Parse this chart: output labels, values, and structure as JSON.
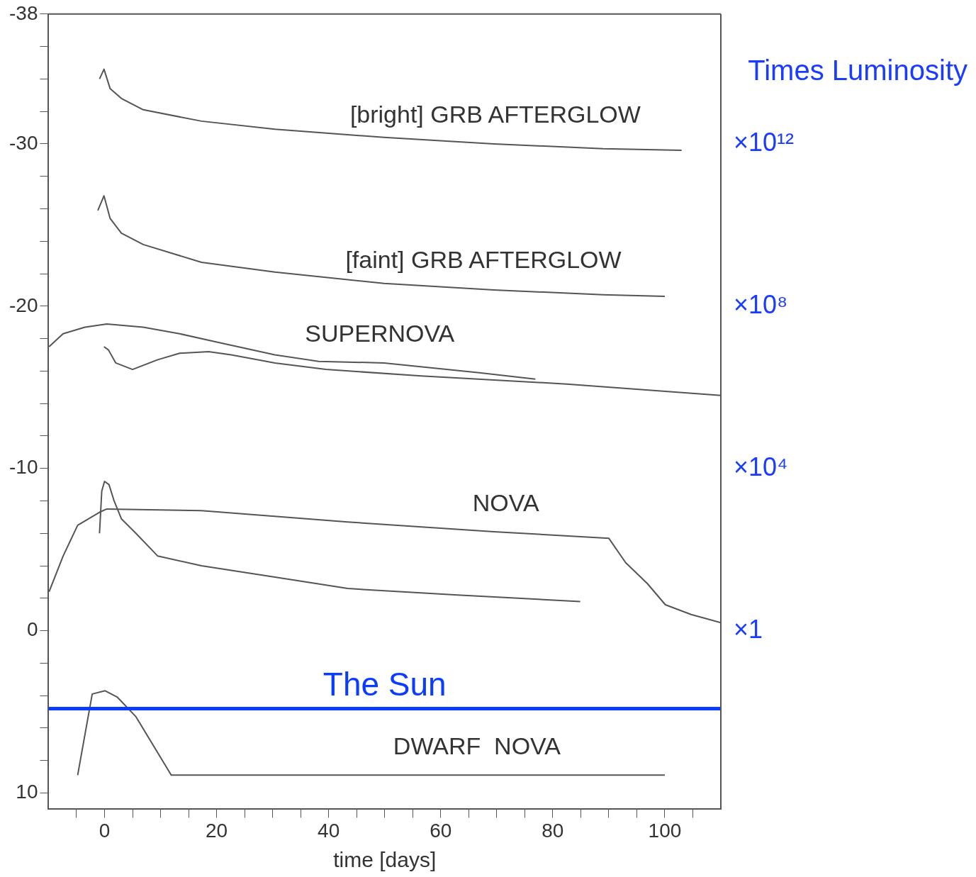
{
  "chart_data": {
    "type": "line",
    "xlabel": "time [days]",
    "y2label": "Times Luminosity",
    "xlim": [
      -10,
      110
    ],
    "ylim": [
      11,
      -38
    ],
    "xticks": [
      {
        "value": -5,
        "label": null
      },
      0,
      {
        "value": 5,
        "label": null
      },
      {
        "value": 10,
        "label": null
      },
      {
        "value": 15,
        "label": null
      },
      20,
      {
        "value": 25,
        "label": null
      },
      {
        "value": 30,
        "label": null
      },
      {
        "value": 35,
        "label": null
      },
      40,
      {
        "value": 45,
        "label": null
      },
      {
        "value": 50,
        "label": null
      },
      {
        "value": 55,
        "label": null
      },
      60,
      {
        "value": 65,
        "label": null
      },
      {
        "value": 70,
        "label": null
      },
      {
        "value": 75,
        "label": null
      },
      80,
      {
        "value": 85,
        "label": null
      },
      {
        "value": 90,
        "label": null
      },
      {
        "value": 95,
        "label": null
      },
      100,
      {
        "value": 105,
        "label": null
      }
    ],
    "yticks": [
      -38,
      {
        "value": -36,
        "label": null
      },
      {
        "value": -34,
        "label": null
      },
      {
        "value": -32,
        "label": null
      },
      -30,
      {
        "value": -28,
        "label": null
      },
      {
        "value": -26,
        "label": null
      },
      {
        "value": -24,
        "label": null
      },
      {
        "value": -22,
        "label": null
      },
      -20,
      {
        "value": -18,
        "label": null
      },
      {
        "value": -16,
        "label": null
      },
      {
        "value": -14,
        "label": null
      },
      {
        "value": -12,
        "label": null
      },
      -10,
      {
        "value": -8,
        "label": null
      },
      {
        "value": -6,
        "label": null
      },
      {
        "value": -4,
        "label": null
      },
      {
        "value": -2,
        "label": null
      },
      0,
      {
        "value": 2,
        "label": null
      },
      {
        "value": 4,
        "label": null
      },
      {
        "value": 6,
        "label": null
      },
      {
        "value": 8,
        "label": null
      },
      10
    ],
    "annotations": [
      "×10¹²",
      "×10⁸",
      "×10⁴",
      "×1"
    ],
    "grid": false,
    "legend": false,
    "marker": "none",
    "line_style": "solid",
    "series": [
      {
        "name": "[bright] GRB AFTERGLOW",
        "color": "#555555",
        "x": [
          -0.9,
          -0.1,
          1.0,
          3.0,
          6.9,
          17.3,
          30.4,
          49.9,
          69.5,
          89,
          103
        ],
        "values": [
          -34.0,
          -34.6,
          -33.4,
          -32.8,
          -32.1,
          -31.4,
          -30.9,
          -30.4,
          -30.0,
          -29.7,
          -29.6
        ]
      },
      {
        "name": "[faint] GRB AFTERGLOW",
        "color": "#555555",
        "x": [
          -1.2,
          -0.1,
          1,
          3,
          6.9,
          17.3,
          30.4,
          49.9,
          69.5,
          89,
          100
        ],
        "values": [
          -25.9,
          -26.8,
          -25.4,
          -24.5,
          -23.8,
          -22.7,
          -22.1,
          -21.4,
          -21.0,
          -20.7,
          -20.6
        ]
      },
      {
        "name": "SUPERNOVA",
        "color": "#555555",
        "x": [
          -9.9,
          -7.4,
          -3.5,
          0.4,
          6.9,
          13.4,
          19.9,
          30.4,
          38.2,
          49.9,
          66.9,
          76.9
        ],
        "values": [
          -17.5,
          -18.3,
          -18.7,
          -18.9,
          -18.7,
          -18.3,
          -17.8,
          -17.0,
          -16.6,
          -16.5,
          -15.9,
          -15.5
        ]
      },
      {
        "color": "#555555",
        "x": [
          -0.1,
          0.7,
          2.0,
          5.0,
          9.5,
          13.4,
          18.6,
          22.6,
          30.4,
          39.5,
          56.5,
          82.5,
          110
        ],
        "values": [
          -17.5,
          -17.3,
          -16.5,
          -16.1,
          -16.7,
          -17.1,
          -17.2,
          -17.0,
          -16.5,
          -16.1,
          -15.7,
          -15.2,
          -14.5
        ]
      },
      {
        "name": "NOVA",
        "color": "#555555",
        "x": [
          -9.9,
          -7.4,
          -4.8,
          -0.9,
          0.4,
          17.3,
          43.4,
          69.5,
          90,
          93,
          96.9,
          100.1,
          104.7,
          110
        ],
        "values": [
          -2.4,
          -4.6,
          -6.5,
          -7.3,
          -7.5,
          -7.4,
          -6.7,
          -6.1,
          -5.7,
          -4.2,
          -2.9,
          -1.6,
          -1.0,
          -0.5
        ]
      },
      {
        "color": "#555555",
        "x": [
          -0.9,
          -0.5,
          0,
          0.8,
          1.7,
          3.0,
          5.6,
          9.5,
          17.3,
          30.4,
          43.4,
          63,
          84.9
        ],
        "values": [
          -6.0,
          -8.6,
          -9.2,
          -9.0,
          -8.0,
          -6.9,
          -6.0,
          -4.6,
          -4.0,
          -3.3,
          -2.6,
          -2.2,
          -1.8
        ]
      },
      {
        "name": "DWARF  NOVA",
        "color": "#555555",
        "x": [
          -4.8,
          -2.2,
          0.1,
          2.3,
          5.6,
          11.9,
          100
        ],
        "values": [
          8.9,
          3.9,
          3.7,
          4.1,
          5.3,
          8.9,
          8.9
        ]
      }
    ],
    "ref_lines": [
      {
        "axis": "y",
        "value": 4.8,
        "label": "The Sun",
        "color": "#0a3cff"
      }
    ]
  }
}
